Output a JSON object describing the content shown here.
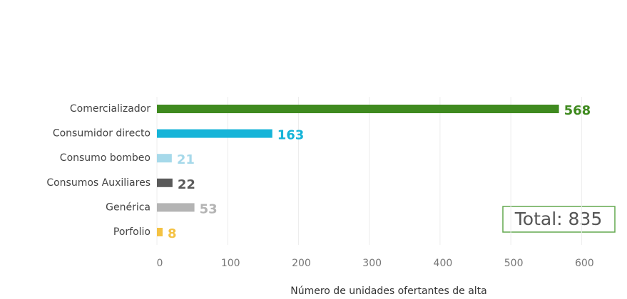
{
  "chart_data": {
    "type": "barh",
    "categories": [
      "Comercializador",
      "Consumidor directo",
      "Consumo bombeo",
      "Consumos Auxiliares",
      "Genérica",
      "Porfolio"
    ],
    "values": [
      568,
      163,
      21,
      22,
      53,
      8
    ],
    "colors": [
      "#3f8a1f",
      "#16b4d8",
      "#a6d9ea",
      "#5a5a5a",
      "#b4b4b4",
      "#f4c243"
    ],
    "xlim": [
      0,
      645
    ],
    "xticks": [
      0,
      100,
      200,
      300,
      400,
      500,
      600
    ],
    "grid": true,
    "xlabel": "Número de unidades ofertantes de alta",
    "annotation": "Total: 835"
  }
}
